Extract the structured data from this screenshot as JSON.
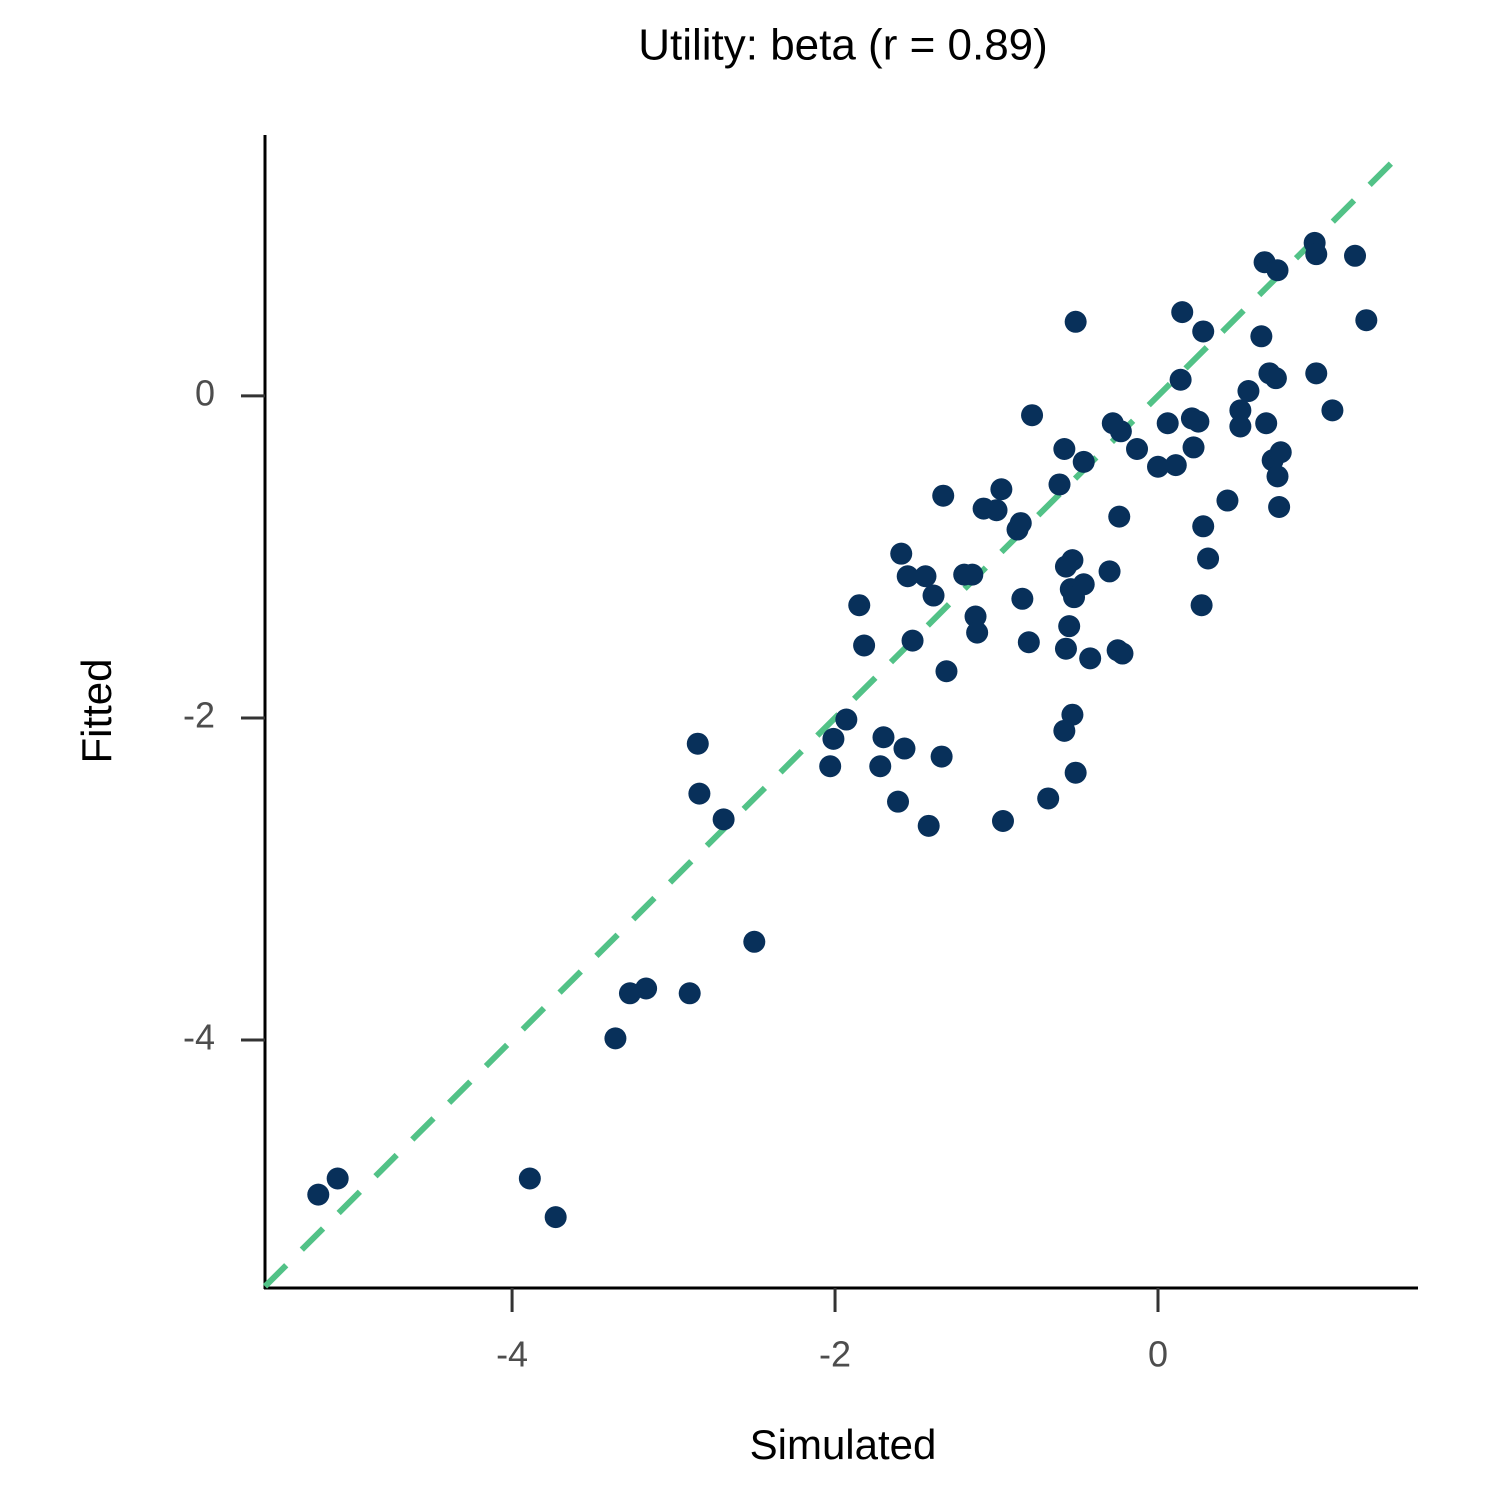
{
  "chart_data": {
    "type": "scatter",
    "title": "Utility: beta (r = 0.89)",
    "x_label": "Simulated",
    "y_label": "Fitted",
    "color": "#08305a",
    "identity_line_color": "#52c287",
    "xlim": [
      -5.53,
      1.61
    ],
    "ylim": [
      -5.54,
      1.62
    ],
    "xticks": [
      -4,
      -2,
      0
    ],
    "yticks": [
      -4,
      -2,
      0
    ],
    "x": [
      -5.2,
      -5.08,
      -3.89,
      -3.73,
      -3.36,
      -3.27,
      -3.17,
      -2.9,
      -2.5,
      -2.85,
      -2.84,
      -2.69,
      -2.03,
      -2.01,
      -1.93,
      -1.7,
      -1.72,
      -1.61,
      -1.57,
      -1.42,
      -1.34,
      -1.31,
      -1.85,
      -1.82,
      -1.52,
      -1.59,
      -1.55,
      -1.44,
      -1.39,
      -1.33,
      -1.2,
      -1.15,
      -1.13,
      -1.12,
      -1.08,
      -1.0,
      -0.97,
      -0.96,
      -0.87,
      -0.85,
      -0.84,
      -0.8,
      -0.78,
      -0.68,
      -0.61,
      -0.58,
      -0.58,
      -0.57,
      -0.57,
      -0.55,
      -0.54,
      -0.53,
      -0.53,
      -0.52,
      -0.51,
      -0.51,
      -0.46,
      -0.46,
      -0.42,
      -0.3,
      -0.28,
      -0.24,
      -0.25,
      -0.22,
      -0.23,
      -0.13,
      0.0,
      0.06,
      0.11,
      0.14,
      0.15,
      0.21,
      0.22,
      0.25,
      0.27,
      0.28,
      0.28,
      0.31,
      0.43,
      0.51,
      0.51,
      0.56,
      0.64,
      0.66,
      0.67,
      0.69,
      0.71,
      0.73,
      0.74,
      0.74,
      0.75,
      0.76,
      0.97,
      0.98,
      0.98,
      1.08,
      1.22,
      1.29
    ],
    "y": [
      -4.96,
      -4.86,
      -4.86,
      -5.1,
      -3.99,
      -3.71,
      -3.68,
      -3.71,
      -3.39,
      -2.16,
      -2.47,
      -2.63,
      -2.3,
      -2.13,
      -2.01,
      -2.12,
      -2.3,
      -2.52,
      -2.19,
      -2.67,
      -2.24,
      -1.71,
      -1.3,
      -1.55,
      -1.52,
      -0.98,
      -1.12,
      -1.12,
      -1.24,
      -0.62,
      -1.11,
      -1.11,
      -1.37,
      -1.47,
      -0.7,
      -0.71,
      -0.58,
      -2.64,
      -0.83,
      -0.79,
      -1.26,
      -1.53,
      -0.12,
      -2.5,
      -0.55,
      -0.33,
      -2.08,
      -1.06,
      -1.57,
      -1.43,
      -1.2,
      -1.02,
      -1.98,
      -1.25,
      -2.34,
      0.46,
      -0.41,
      -1.17,
      -1.63,
      -1.09,
      -0.17,
      -0.75,
      -1.58,
      -1.6,
      -0.22,
      -0.33,
      -0.44,
      -0.17,
      -0.43,
      0.1,
      0.52,
      -0.14,
      -0.32,
      -0.16,
      -1.3,
      -0.81,
      0.4,
      -1.01,
      -0.65,
      -0.09,
      -0.19,
      0.03,
      0.37,
      0.83,
      -0.17,
      0.14,
      -0.4,
      0.11,
      -0.5,
      0.78,
      -0.69,
      -0.35,
      0.95,
      0.88,
      0.14,
      -0.09,
      0.87,
      0.47
    ]
  }
}
